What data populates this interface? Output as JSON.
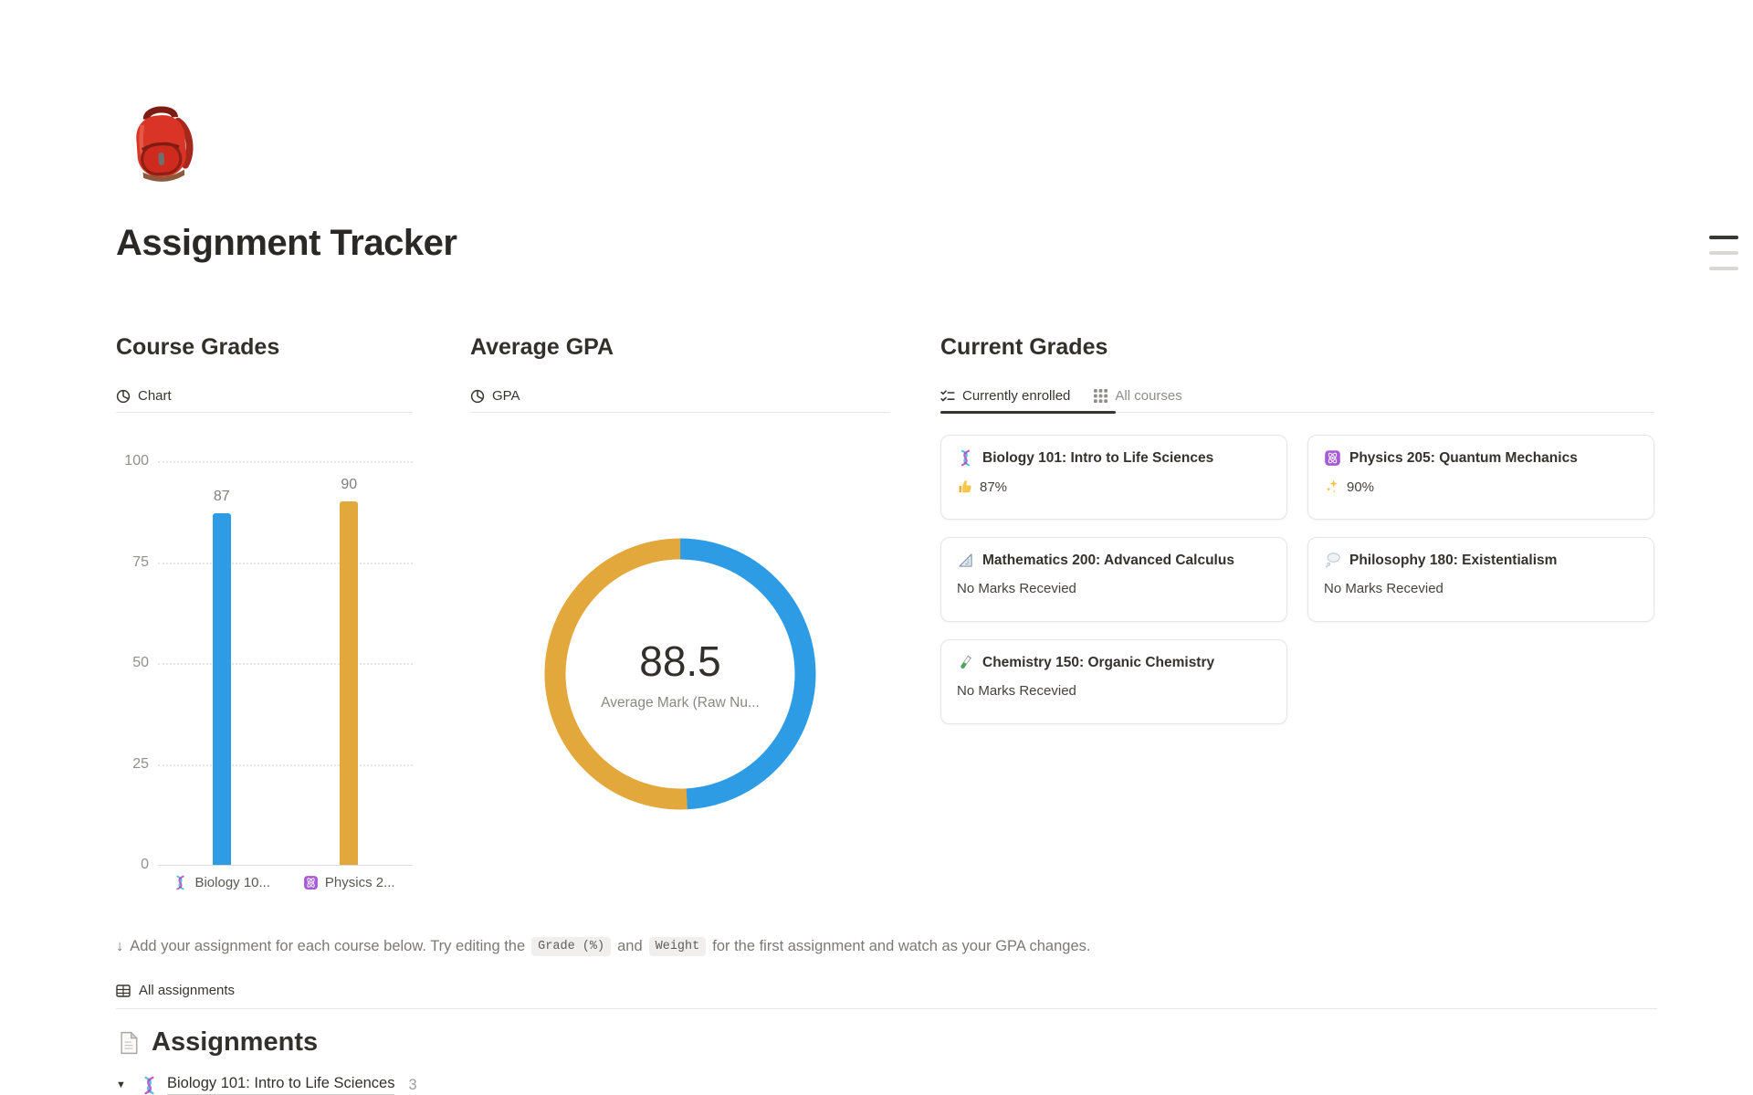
{
  "page": {
    "title": "Assignment Tracker",
    "emoji": "backpack"
  },
  "toc_widget": {
    "lines": 3
  },
  "course_grades": {
    "heading": "Course Grades",
    "tab_label": "Chart",
    "tab_icon": "pie-chart-icon"
  },
  "average_gpa": {
    "heading": "Average GPA",
    "tab_label": "GPA",
    "tab_icon": "pie-chart-icon"
  },
  "current_grades": {
    "heading": "Current Grades",
    "tabs": [
      {
        "label": "Currently enrolled",
        "icon": "checklist-icon",
        "active": true
      },
      {
        "label": "All courses",
        "icon": "grid-icon",
        "active": false
      }
    ],
    "cards": [
      {
        "icon": "dna-icon",
        "title": "Biology 101: Intro to Life Sciences",
        "mark_icon": "thumbs-up-icon",
        "mark": "87%"
      },
      {
        "icon": "atom-icon",
        "title": "Physics 205: Quantum Mechanics",
        "mark_icon": "sparkles-icon",
        "mark": "90%"
      },
      {
        "icon": "triangular-ruler-icon",
        "title": "Mathematics 200: Advanced Calculus",
        "mark": "No Marks Recevied"
      },
      {
        "icon": "thought-balloon-icon",
        "title": "Philosophy 180: Existentialism",
        "mark": "No Marks Recevied"
      },
      {
        "icon": "test-tube-icon",
        "title": "Chemistry 150: Organic Chemistry",
        "mark": "No Marks Recevied"
      }
    ]
  },
  "chart_data": [
    {
      "type": "bar",
      "title": "Course Grades",
      "categories": [
        "Biology 10...",
        "Physics 2..."
      ],
      "category_icons": [
        "i-dna",
        "i-atom"
      ],
      "values": [
        87,
        90
      ],
      "colors": [
        "#2E9CE5",
        "#E3A83C"
      ],
      "ylim": [
        0,
        100
      ],
      "yticks": [
        0,
        25,
        50,
        75,
        100
      ],
      "grid": "dotted horizontal",
      "xlabel": "",
      "ylabel": ""
    },
    {
      "type": "donut",
      "title": "Average GPA",
      "center_value": "88.5",
      "center_label": "Average Mark (Raw Nu...",
      "series": [
        {
          "name": "Biology 101",
          "value": 87,
          "color": "#2E9CE5"
        },
        {
          "name": "Physics 205",
          "value": 90,
          "color": "#E3A83C"
        }
      ],
      "legend": "none"
    }
  ],
  "note": {
    "arrow": "↓",
    "text_before": "Add your assignment for each course below. Try editing the",
    "chip1": "Grade (%)",
    "between": "and",
    "chip2": "Weight",
    "text_after": "for the first assignment and watch as your GPA changes."
  },
  "assignments": {
    "view_tab": "All assignments",
    "view_tab_icon": "table-icon",
    "heading": "Assignments",
    "heading_icon": "page-icon",
    "groups": [
      {
        "toggle": "▼",
        "icon": "dna-icon",
        "title": "Biology 101: Intro to Life Sciences",
        "count": "3"
      }
    ]
  },
  "colors": {
    "accent_blue": "#2E9CE5",
    "accent_yellow": "#E3A83C",
    "text_dark": "#37352F",
    "text_gray": "#8F8D89",
    "divider": "#E9E7E4"
  }
}
